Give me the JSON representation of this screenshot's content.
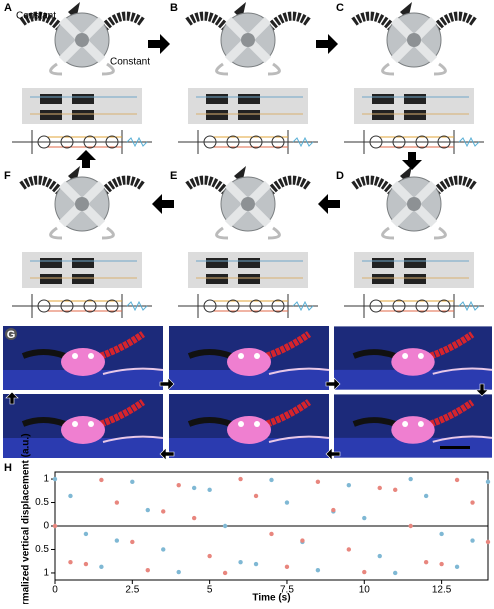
{
  "panels": [
    {
      "label": "A",
      "notes": [
        "Constant",
        "Constant"
      ]
    },
    {
      "label": "B"
    },
    {
      "label": "C"
    },
    {
      "label": "D"
    },
    {
      "label": "E"
    },
    {
      "label": "F"
    }
  ],
  "photo_panel": {
    "label": "G"
  },
  "chart_panel": {
    "label": "H"
  },
  "chart_data": {
    "type": "scatter",
    "xlabel": "Time (s)",
    "ylabel": "Normalized vertical displacement (a.u.)",
    "xlim": [
      0,
      14
    ],
    "ylim": [
      -1.15,
      1.15
    ],
    "xticks": [
      0,
      2.5,
      5,
      7.5,
      10,
      12.5
    ],
    "yticks": [
      1,
      0.5,
      0,
      {
        "value": -0.5,
        "label": "0.5"
      },
      {
        "value": -1,
        "label": "1"
      }
    ],
    "x": [
      0,
      0.5,
      1,
      1.5,
      2,
      2.5,
      3,
      3.5,
      4,
      4.5,
      5,
      5.5,
      6,
      6.5,
      7,
      7.5,
      8,
      8.5,
      9,
      9.5,
      10,
      10.5,
      11,
      11.5,
      12,
      12.5,
      13,
      13.5,
      14
    ],
    "series": [
      {
        "color": "#7fb8d4",
        "values": [
          1,
          0.64,
          -0.17,
          -0.87,
          -0.31,
          0.94,
          0.34,
          -0.5,
          -0.98,
          0.81,
          0.77,
          0,
          -0.77,
          -0.81,
          0.98,
          0.5,
          -0.34,
          -0.94,
          0.31,
          0.87,
          0.17,
          -0.64,
          -1,
          1,
          0.64,
          -0.17,
          -0.87,
          -0.31,
          0.94
        ]
      },
      {
        "color": "#e8867e",
        "values": [
          0,
          -0.77,
          -0.81,
          0.98,
          0.5,
          -0.34,
          -0.94,
          0.31,
          0.87,
          0.17,
          -0.64,
          -1,
          1,
          0.64,
          -0.17,
          -0.87,
          -0.31,
          0.94,
          0.34,
          -0.5,
          -0.98,
          0.81,
          0.77,
          0,
          -0.77,
          -0.81,
          0.98,
          0.5,
          -0.34
        ]
      }
    ]
  }
}
